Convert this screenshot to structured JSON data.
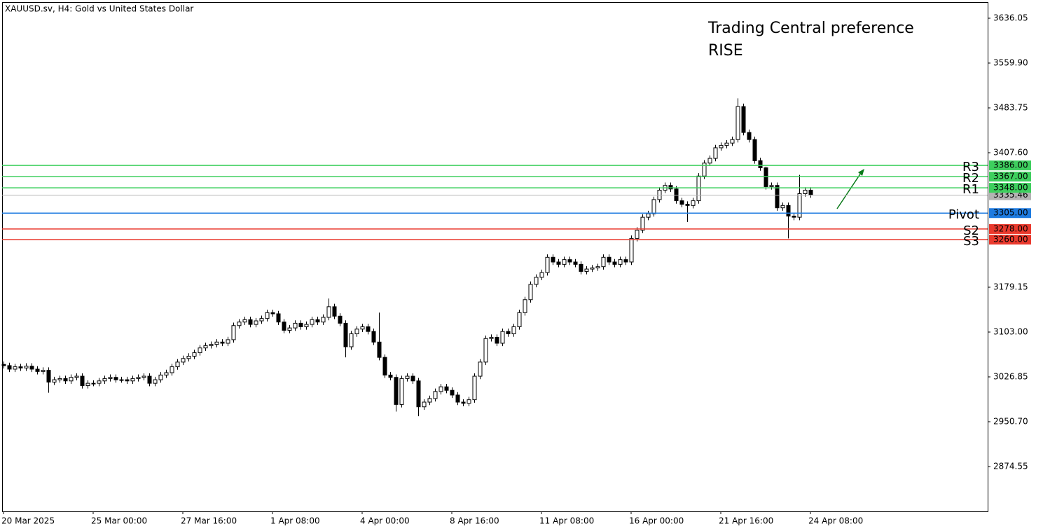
{
  "chart_data": {
    "type": "candlestick",
    "title": "XAUUSD.sv, H4:  Gold vs United States Dollar",
    "annotation": [
      "Trading Central preference",
      "RISE"
    ],
    "annotation_color": "#3ecf5e",
    "up_color": "#ffffff",
    "down_color": "#000000",
    "categories": [
      "20 Mar 2025",
      null,
      null,
      null,
      null,
      null,
      null,
      null,
      null,
      null,
      null,
      null,
      null,
      null,
      null,
      null,
      "25 Mar 00:00",
      null,
      null,
      null,
      null,
      null,
      null,
      null,
      null,
      null,
      null,
      null,
      null,
      null,
      null,
      null,
      "27 Mar 16:00",
      null,
      null,
      null,
      null,
      null,
      null,
      null,
      null,
      null,
      null,
      null,
      null,
      null,
      null,
      null,
      "1 Apr 08:00",
      null,
      null,
      null,
      null,
      null,
      null,
      null,
      null,
      null,
      null,
      null,
      null,
      null,
      null,
      null,
      "4 Apr 00:00",
      null,
      null,
      null,
      null,
      null,
      null,
      null,
      null,
      null,
      null,
      null,
      null,
      null,
      null,
      null,
      "8 Apr 16:00",
      null,
      null,
      null,
      null,
      null,
      null,
      null,
      null,
      null,
      null,
      null,
      null,
      null,
      null,
      null,
      "11 Apr 08:00",
      null,
      null,
      null,
      null,
      null,
      null,
      null,
      null,
      null,
      null,
      null,
      null,
      null,
      null,
      null,
      "16 Apr 00:00",
      null,
      null,
      null,
      null,
      null,
      null,
      null,
      null,
      null,
      null,
      null,
      null,
      null,
      null,
      null,
      "21 Apr 16:00",
      null,
      null,
      null,
      null,
      null,
      null,
      null,
      null,
      null,
      null,
      null,
      null,
      null,
      null,
      null,
      "24 Apr 08:00"
    ],
    "open": [
      3048,
      3046,
      3040,
      3044,
      3042,
      3045,
      3040,
      3036,
      3038,
      3018,
      3022,
      3024,
      3020,
      3026,
      3028,
      3012,
      3016,
      3016,
      3020,
      3024,
      3026,
      3022,
      3022,
      3020,
      3024,
      3026,
      3028,
      3016,
      3022,
      3030,
      3034,
      3044,
      3052,
      3058,
      3062,
      3068,
      3076,
      3080,
      3082,
      3086,
      3084,
      3090,
      3114,
      3120,
      3124,
      3116,
      3122,
      3126,
      3136,
      3134,
      3120,
      3106,
      3110,
      3118,
      3112,
      3116,
      3124,
      3120,
      3128,
      3146,
      3130,
      3118,
      3078,
      3100,
      3108,
      3112,
      3104,
      3086,
      3060,
      3030,
      3026,
      2980,
      3024,
      3028,
      3020,
      2976,
      2984,
      2990,
      3002,
      3010,
      3004,
      2996,
      2984,
      2982,
      2988,
      3028,
      3052,
      3092,
      3094,
      3084,
      3104,
      3100,
      3112,
      3136,
      3158,
      3184,
      3196,
      3204,
      3230,
      3222,
      3218,
      3226,
      3222,
      3218,
      3206,
      3210,
      3212,
      3214,
      3230,
      3222,
      3218,
      3226,
      3222,
      3262,
      3276,
      3298,
      3304,
      3328,
      3344,
      3352,
      3346,
      3326,
      3320,
      3318,
      3326,
      3368,
      3390,
      3398,
      3416,
      3420,
      3424,
      3430,
      3486,
      3442,
      3430,
      3394,
      3382,
      3350,
      3352,
      3314,
      3318,
      3300,
      3298,
      3338,
      3344
    ],
    "high": [
      3053,
      3051,
      3049,
      3049,
      3050,
      3050,
      3045,
      3043,
      3043,
      3027,
      3029,
      3029,
      3031,
      3033,
      3033,
      3021,
      3021,
      3025,
      3029,
      3031,
      3031,
      3027,
      3027,
      3029,
      3031,
      3033,
      3033,
      3027,
      3035,
      3039,
      3049,
      3057,
      3063,
      3067,
      3073,
      3081,
      3085,
      3087,
      3091,
      3091,
      3095,
      3119,
      3125,
      3129,
      3129,
      3127,
      3131,
      3141,
      3141,
      3139,
      3125,
      3115,
      3123,
      3123,
      3121,
      3129,
      3129,
      3133,
      3160,
      3151,
      3135,
      3123,
      3105,
      3113,
      3117,
      3117,
      3109,
      3136,
      3065,
      3035,
      3031,
      3029,
      3033,
      3033,
      3025,
      2989,
      2995,
      3007,
      3015,
      3015,
      3009,
      3001,
      2989,
      2993,
      3033,
      3057,
      3097,
      3099,
      3099,
      3109,
      3109,
      3117,
      3141,
      3163,
      3189,
      3201,
      3209,
      3235,
      3235,
      3227,
      3231,
      3231,
      3227,
      3223,
      3215,
      3217,
      3219,
      3235,
      3235,
      3227,
      3231,
      3231,
      3267,
      3281,
      3303,
      3309,
      3333,
      3349,
      3357,
      3357,
      3351,
      3331,
      3325,
      3331,
      3373,
      3395,
      3403,
      3421,
      3425,
      3429,
      3435,
      3500,
      3491,
      3447,
      3435,
      3399,
      3384,
      3357,
      3357,
      3323,
      3323,
      3305,
      3370,
      3349,
      3349
    ],
    "low": [
      3041,
      3035,
      3035,
      3037,
      3037,
      3035,
      3031,
      3031,
      3000,
      3013,
      3017,
      3015,
      3015,
      3021,
      3007,
      3007,
      3011,
      3011,
      3015,
      3019,
      3017,
      3017,
      3015,
      3015,
      3019,
      3021,
      3011,
      3011,
      3017,
      3025,
      3029,
      3039,
      3047,
      3053,
      3057,
      3063,
      3071,
      3075,
      3077,
      3079,
      3079,
      3085,
      3109,
      3115,
      3111,
      3111,
      3117,
      3121,
      3129,
      3115,
      3101,
      3101,
      3105,
      3107,
      3107,
      3111,
      3115,
      3115,
      3123,
      3125,
      3113,
      3060,
      3073,
      3095,
      3103,
      3099,
      3081,
      3055,
      3025,
      3021,
      2968,
      2975,
      3019,
      3015,
      2960,
      2971,
      2979,
      2985,
      2997,
      2999,
      2991,
      2979,
      2977,
      2977,
      2983,
      3023,
      3047,
      3087,
      3079,
      3079,
      3095,
      3095,
      3107,
      3131,
      3153,
      3179,
      3191,
      3199,
      3217,
      3213,
      3213,
      3217,
      3213,
      3201,
      3201,
      3205,
      3207,
      3209,
      3217,
      3213,
      3213,
      3217,
      3217,
      3257,
      3271,
      3293,
      3299,
      3323,
      3339,
      3341,
      3321,
      3315,
      3290,
      3313,
      3321,
      3363,
      3385,
      3393,
      3411,
      3415,
      3419,
      3425,
      3437,
      3425,
      3389,
      3377,
      3345,
      3345,
      3309,
      3309,
      3262,
      3293,
      3293,
      3333,
      3331
    ],
    "close": [
      3046,
      3040,
      3044,
      3042,
      3045,
      3040,
      3036,
      3038,
      3018,
      3022,
      3024,
      3020,
      3026,
      3028,
      3012,
      3016,
      3016,
      3020,
      3024,
      3026,
      3022,
      3022,
      3020,
      3024,
      3026,
      3028,
      3016,
      3022,
      3030,
      3034,
      3044,
      3052,
      3058,
      3062,
      3068,
      3076,
      3080,
      3082,
      3086,
      3084,
      3090,
      3114,
      3120,
      3124,
      3116,
      3122,
      3126,
      3136,
      3134,
      3120,
      3106,
      3110,
      3118,
      3112,
      3116,
      3124,
      3120,
      3128,
      3146,
      3130,
      3118,
      3078,
      3100,
      3108,
      3112,
      3104,
      3086,
      3060,
      3030,
      3026,
      2980,
      3024,
      3028,
      3020,
      2976,
      2984,
      2990,
      3002,
      3010,
      3004,
      2996,
      2984,
      2982,
      2988,
      3028,
      3052,
      3092,
      3094,
      3084,
      3104,
      3100,
      3112,
      3136,
      3158,
      3184,
      3196,
      3204,
      3230,
      3222,
      3218,
      3226,
      3222,
      3218,
      3206,
      3210,
      3212,
      3214,
      3230,
      3222,
      3218,
      3226,
      3222,
      3262,
      3276,
      3298,
      3304,
      3328,
      3344,
      3352,
      3346,
      3326,
      3320,
      3318,
      3326,
      3368,
      3390,
      3398,
      3416,
      3420,
      3424,
      3430,
      3486,
      3442,
      3430,
      3394,
      3382,
      3350,
      3352,
      3314,
      3318,
      3300,
      3298,
      3338,
      3344,
      3336
    ],
    "ylim": [
      2798.4,
      3667
    ],
    "yticks": [
      3636.05,
      {
        "value": 3559.9,
        "label": "3559.90"
      },
      3483.75,
      {
        "value": 3407.6,
        "label": "3407.60"
      },
      3179.15,
      {
        "value": 3103,
        "label": "3103.00"
      },
      3026.85,
      {
        "value": 2950.7,
        "label": "2950.70"
      },
      2874.55
    ],
    "levels": [
      {
        "name": "R3",
        "value": 3386,
        "label": "3386.00",
        "color": "#3ecf5e"
      },
      {
        "name": "R2",
        "value": 3367,
        "label": "3367.00",
        "color": "#3ecf5e"
      },
      {
        "name": "R1",
        "value": 3348,
        "label": "3348.00",
        "color": "#3ecf5e"
      },
      {
        "name": "Pivot",
        "value": 3305,
        "label": "3305.00",
        "color": "#1e7be0"
      },
      {
        "name": "S2",
        "value": 3278,
        "label": "3278.00",
        "color": "#ea3a2e"
      },
      {
        "name": "S3",
        "value": 3260,
        "label": "3260.00",
        "color": "#ea3a2e"
      }
    ],
    "last_price": {
      "value": 3335.46,
      "label": "3335.46",
      "color": "#b4b4b4"
    }
  }
}
